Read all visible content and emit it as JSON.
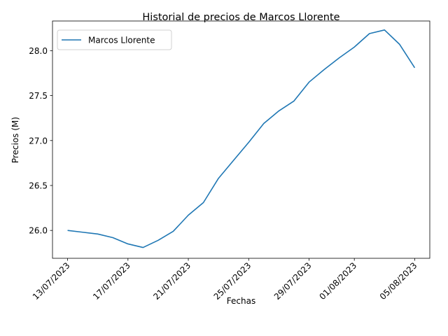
{
  "chart_data": {
    "type": "line",
    "title": "Historial de precios de Marcos Llorente",
    "xlabel": "Fechas",
    "ylabel": "Precios (M)",
    "legend_position": "top-left",
    "grid": false,
    "series_color": "#1f77b4",
    "x": [
      "13/07/2023",
      "14/07/2023",
      "15/07/2023",
      "16/07/2023",
      "17/07/2023",
      "18/07/2023",
      "19/07/2023",
      "20/07/2023",
      "21/07/2023",
      "22/07/2023",
      "23/07/2023",
      "24/07/2023",
      "25/07/2023",
      "26/07/2023",
      "27/07/2023",
      "28/07/2023",
      "29/07/2023",
      "30/07/2023",
      "31/07/2023",
      "01/08/2023",
      "02/08/2023",
      "03/08/2023",
      "04/08/2023",
      "05/08/2023"
    ],
    "series": [
      {
        "name": "Marcos Llorente",
        "values": [
          26.0,
          25.98,
          25.96,
          25.92,
          25.85,
          25.81,
          25.89,
          25.99,
          26.17,
          26.31,
          26.58,
          26.78,
          26.98,
          27.19,
          27.33,
          27.44,
          27.65,
          27.79,
          27.92,
          28.04,
          28.19,
          28.23,
          28.07,
          27.81
        ]
      }
    ],
    "xticks": [
      "13/07/2023",
      "17/07/2023",
      "21/07/2023",
      "25/07/2023",
      "29/07/2023",
      "01/08/2023",
      "05/08/2023"
    ],
    "yticks": [
      26.0,
      26.5,
      27.0,
      27.5,
      28.0
    ],
    "ylim": [
      25.69,
      28.33
    ],
    "xlim": [
      "12/07/2023",
      "06/08/2023"
    ]
  }
}
